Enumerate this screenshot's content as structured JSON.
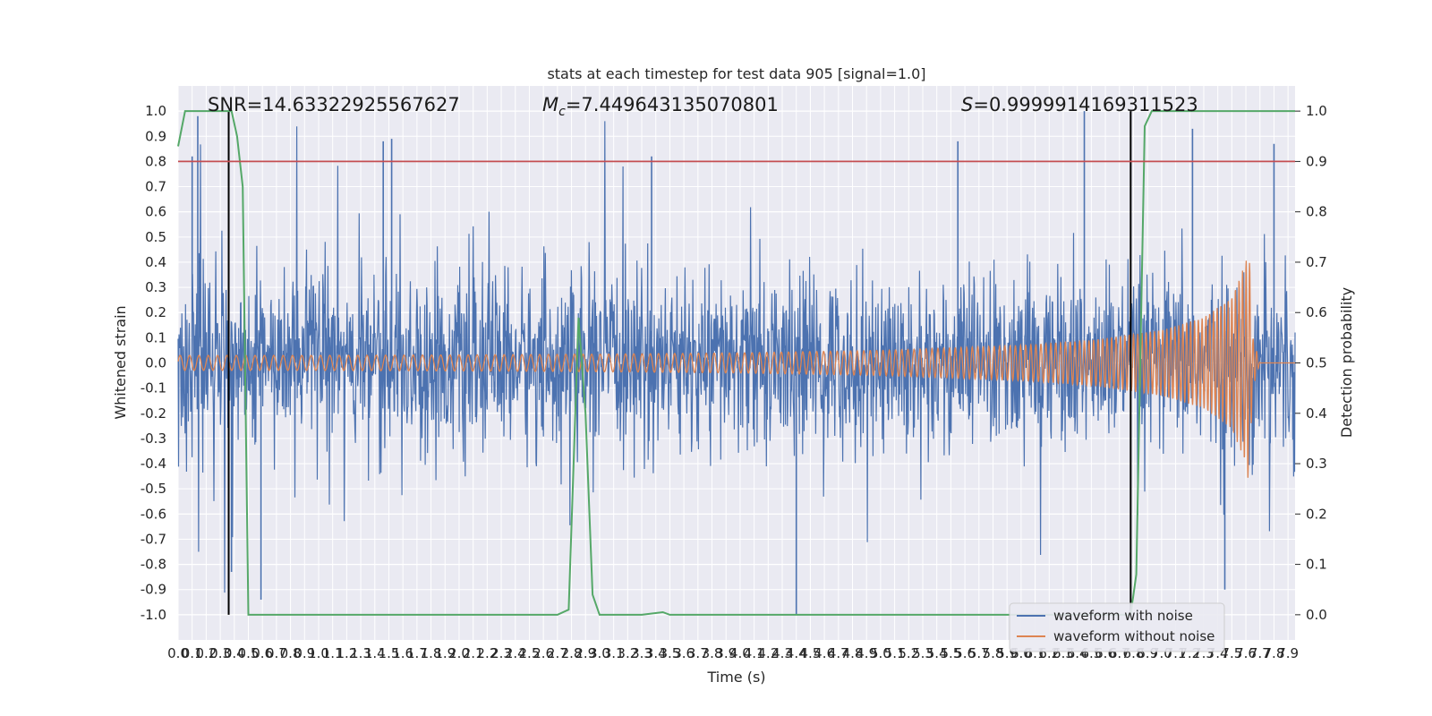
{
  "chart_data": {
    "type": "line",
    "title": "stats at each timestep for test data 905 [signal=1.0]",
    "xlabel": "Time (s)",
    "ylabel": "Whitened strain",
    "ylabel_right": "Detection probability",
    "xlim": [
      0.0,
      7.95
    ],
    "ylim": [
      -1.1,
      1.1
    ],
    "ylim_right": [
      -0.05,
      1.05
    ],
    "x_ticks": [
      0.0,
      0.1,
      0.2,
      0.3,
      0.4,
      0.5,
      0.6,
      0.7,
      0.8,
      0.9,
      1.0,
      1.1,
      1.2,
      1.3,
      1.4,
      1.5,
      1.6,
      1.7,
      1.8,
      1.9,
      2.0,
      2.1,
      2.2,
      2.3,
      2.4,
      2.5,
      2.6,
      2.7,
      2.8,
      2.9,
      3.0,
      3.1,
      3.2,
      3.3,
      3.4,
      3.5,
      3.6,
      3.7,
      3.8,
      3.9,
      4.0,
      4.1,
      4.2,
      4.3,
      4.4,
      4.5,
      4.6,
      4.7,
      4.8,
      4.9,
      5.0,
      5.1,
      5.2,
      5.3,
      5.4,
      5.5,
      5.6,
      5.7,
      5.8,
      5.9,
      6.0,
      6.1,
      6.2,
      6.3,
      6.4,
      6.5,
      6.6,
      6.7,
      6.8,
      6.9,
      7.0,
      7.1,
      7.2,
      7.3,
      7.4,
      7.5,
      7.6,
      7.7,
      7.8,
      7.9
    ],
    "y_ticks": [
      -1.0,
      -0.9,
      -0.8,
      -0.7,
      -0.6,
      -0.5,
      -0.4,
      -0.3,
      -0.2,
      -0.1,
      0.0,
      0.1,
      0.2,
      0.3,
      0.4,
      0.5,
      0.6,
      0.7,
      0.8,
      0.9,
      1.0
    ],
    "y_ticks_right": [
      0.0,
      0.1,
      0.2,
      0.3,
      0.4,
      0.5,
      0.6,
      0.7,
      0.8,
      0.9,
      1.0
    ],
    "grid": true,
    "legend_placement": "lower right",
    "series": [
      {
        "name": "waveform with noise",
        "color": "#4c72b0",
        "axis": "left",
        "description_values": "dense noise, amplitude mostly within ±0.4 with peaks reaching about ±0.98",
        "peaks": [
          [
            0.1,
            0.82
          ],
          [
            0.14,
            0.98
          ],
          [
            0.38,
            -0.83
          ],
          [
            0.59,
            -0.94
          ],
          [
            1.52,
            0.89
          ],
          [
            1.46,
            0.88
          ],
          [
            3.37,
            0.82
          ],
          [
            4.4,
            -1.0
          ],
          [
            5.55,
            0.88
          ],
          [
            6.45,
            1.0
          ],
          [
            7.22,
            0.93
          ],
          [
            7.45,
            -0.9
          ],
          [
            7.8,
            0.87
          ]
        ]
      },
      {
        "name": "waveform without noise",
        "color": "#dd8452",
        "axis": "left",
        "description_values": "chirp: amplitude ~0.03 at t=0 growing to peak ~0.48 near t=7.62 then ringdown to 0",
        "x": [
          0.0,
          1.0,
          2.0,
          3.0,
          4.0,
          5.0,
          6.0,
          6.5,
          7.0,
          7.3,
          7.5,
          7.6,
          7.62,
          7.65,
          7.7,
          7.95
        ],
        "envelope": [
          0.03,
          0.03,
          0.032,
          0.035,
          0.04,
          0.05,
          0.07,
          0.09,
          0.13,
          0.18,
          0.26,
          0.4,
          0.48,
          0.1,
          0.0,
          0.0
        ]
      },
      {
        "name": "",
        "color": "#55a868",
        "axis": "right",
        "x": [
          0.0,
          0.05,
          0.15,
          0.25,
          0.38,
          0.42,
          0.46,
          0.5,
          0.6,
          1.0,
          2.0,
          2.7,
          2.78,
          2.85,
          2.9,
          2.95,
          3.0,
          3.1,
          3.3,
          3.45,
          3.5,
          3.6,
          4.0,
          5.0,
          6.0,
          6.7,
          6.78,
          6.82,
          6.88,
          6.93,
          7.0,
          7.5,
          7.95
        ],
        "y": [
          0.93,
          1.0,
          1.0,
          1.0,
          1.0,
          0.95,
          0.85,
          0.0,
          0.0,
          0.0,
          0.0,
          0.0,
          0.01,
          0.59,
          0.4,
          0.04,
          0.0,
          0.0,
          0.0,
          0.005,
          0.0,
          0.0,
          0.0,
          0.0,
          0.0,
          0.0,
          0.0,
          0.08,
          0.97,
          1.0,
          1.0,
          1.0,
          1.0
        ]
      }
    ],
    "threshold_line": {
      "value": 0.9,
      "axis": "right",
      "color": "#c44e52"
    },
    "vertical_markers": [
      0.36,
      6.78
    ],
    "annotations": [
      {
        "text": "SNR=14.63322925567627",
        "x": 0.2
      },
      {
        "text_math_symbol": "M",
        "text_math_sub": "c",
        "text_rest": "=7.449643135070801",
        "x": 2.6
      },
      {
        "text_math_symbol": "S",
        "text_rest": "=0.9999914169311523",
        "x": 5.6
      }
    ],
    "legend": [
      "waveform with noise",
      "waveform without noise"
    ]
  }
}
